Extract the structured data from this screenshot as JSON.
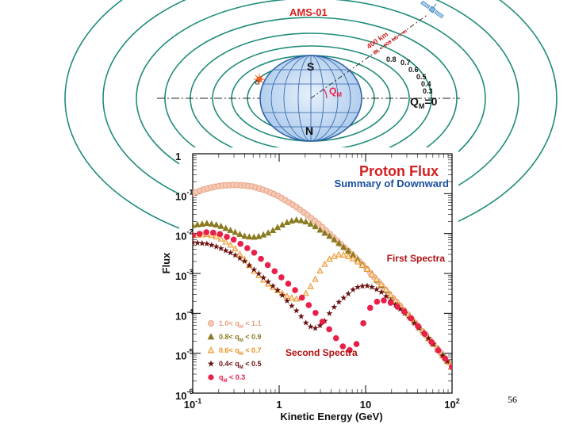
{
  "diagram": {
    "title": "AMS-01",
    "pole_s": "S",
    "pole_n": "N",
    "qm_label": "Q",
    "qm_sub": "M",
    "equator_label": "Q",
    "equator_sub": "M",
    "equator_value": "=0",
    "orbit_label": "400 km",
    "bl_label": "BL = 100 kG × m",
    "contours": [
      "0.8",
      "0.7",
      "0.6",
      "0.5",
      "0.4",
      "0.3"
    ]
  },
  "chart_data": {
    "type": "scatter",
    "title": "Proton Flux",
    "subtitle": "Summary of Downward",
    "xlabel": "Kinetic Energy (GeV)",
    "ylabel": "Flux",
    "xscale": "log",
    "yscale": "log",
    "xlim": [
      0.1,
      100
    ],
    "ylim": [
      1e-06,
      1
    ],
    "x_ticks": [
      {
        "base": "10",
        "exp": "-1",
        "value": 0.1
      },
      {
        "base": "1",
        "exp": "",
        "value": 1
      },
      {
        "base": "10",
        "exp": "",
        "value": 10
      },
      {
        "base": "10",
        "exp": "2",
        "value": 100
      }
    ],
    "y_ticks": [
      {
        "base": "1",
        "exp": "",
        "value": 1
      },
      {
        "base": "10",
        "exp": "-1",
        "value": 0.1
      },
      {
        "base": "10",
        "exp": "-2",
        "value": 0.01
      },
      {
        "base": "10",
        "exp": "-3",
        "value": 0.001
      },
      {
        "base": "10",
        "exp": "-4",
        "value": 0.0001
      },
      {
        "base": "10",
        "exp": "-5",
        "value": 1e-05
      },
      {
        "base": "10",
        "exp": "-6",
        "value": 1e-06
      }
    ],
    "annotations": [
      "First Spectra",
      "Second Spectra"
    ],
    "legend_position": "bottom-left",
    "series": [
      {
        "name": "1.0< q_M < 1.1",
        "legend_pre": "1.0< q",
        "legend_sub": "M",
        "legend_post": " < 1.1",
        "color": "#e8a080",
        "marker": "circle-open",
        "x": [
          0.1,
          0.13,
          0.17,
          0.22,
          0.3,
          0.4,
          0.5,
          0.7,
          1,
          1.5,
          2,
          3,
          5,
          7,
          10,
          15,
          20,
          30,
          50,
          70,
          100
        ],
        "y": [
          0.1,
          0.125,
          0.145,
          0.16,
          0.165,
          0.16,
          0.15,
          0.12,
          0.085,
          0.05,
          0.032,
          0.016,
          0.0058,
          0.003,
          0.0014,
          0.00052,
          0.00026,
          0.0001,
          2.8e-05,
          1.2e-05,
          4.5e-06
        ]
      },
      {
        "name": "0.8< q_M < 0.9",
        "legend_pre": "0.8< q",
        "legend_sub": "M",
        "legend_post": " < 0.9",
        "color": "#8a7a20",
        "marker": "triangle",
        "x": [
          0.1,
          0.15,
          0.2,
          0.3,
          0.4,
          0.5,
          0.6,
          0.8,
          1,
          1.3,
          1.6,
          2,
          2.5,
          3,
          4,
          5,
          7,
          10,
          15,
          20,
          30,
          50,
          70,
          100
        ],
        "y": [
          0.016,
          0.018,
          0.016,
          0.011,
          0.0085,
          0.008,
          0.0085,
          0.011,
          0.015,
          0.02,
          0.022,
          0.02,
          0.016,
          0.012,
          0.008,
          0.0055,
          0.003,
          0.0014,
          0.00052,
          0.00026,
          0.0001,
          2.8e-05,
          1.2e-05,
          4.5e-06
        ]
      },
      {
        "name": "0.6< q_M < 0.7",
        "legend_pre": "0.6< q",
        "legend_sub": "M",
        "legend_post": " < 0.7",
        "color": "#e89020",
        "marker": "triangle-open",
        "x": [
          0.1,
          0.15,
          0.2,
          0.3,
          0.4,
          0.5,
          0.7,
          1,
          1.3,
          1.7,
          2,
          2.5,
          3,
          3.5,
          4,
          5,
          6,
          7,
          8,
          10,
          12,
          15,
          20,
          30,
          50,
          100
        ],
        "y": [
          0.009,
          0.0095,
          0.008,
          0.0045,
          0.0022,
          0.0012,
          0.0006,
          0.00035,
          0.00025,
          0.00022,
          0.0003,
          0.0006,
          0.0012,
          0.0019,
          0.0025,
          0.003,
          0.0028,
          0.0024,
          0.002,
          0.0014,
          0.0009,
          0.00055,
          0.00027,
          0.0001,
          2.8e-05,
          4.5e-06
        ]
      },
      {
        "name": "0.4< q_M < 0.5",
        "legend_pre": "0.4< q",
        "legend_sub": "M",
        "legend_post": " < 0.5",
        "color": "#6a1010",
        "marker": "star",
        "x": [
          0.1,
          0.15,
          0.2,
          0.3,
          0.4,
          0.5,
          0.7,
          1,
          1.3,
          1.7,
          2,
          2.5,
          3,
          3.5,
          4,
          5,
          6,
          7,
          8,
          10,
          12,
          15,
          20,
          30,
          50,
          100
        ],
        "y": [
          0.006,
          0.0055,
          0.0045,
          0.003,
          0.002,
          0.0013,
          0.0007,
          0.00035,
          0.00018,
          0.0001,
          6e-05,
          4e-05,
          5e-05,
          7e-05,
          0.00012,
          0.0002,
          0.00028,
          0.00038,
          0.00045,
          0.0005,
          0.00045,
          0.00035,
          0.0002,
          9e-05,
          2.8e-05,
          4.5e-06
        ]
      },
      {
        "name": "q_M < 0.3",
        "legend_pre": "q",
        "legend_sub": "M",
        "legend_post": " < 0.3",
        "color": "#e8204a",
        "marker": "circle",
        "x": [
          0.1,
          0.15,
          0.2,
          0.3,
          0.5,
          0.7,
          1,
          1.5,
          2,
          2.5,
          3,
          4,
          5,
          6,
          7,
          8,
          9,
          10,
          12,
          15,
          18,
          22,
          30,
          50,
          100
        ],
        "y": [
          0.009,
          0.011,
          0.01,
          0.007,
          0.0035,
          0.0018,
          0.0009,
          0.0004,
          0.0002,
          0.00012,
          7e-05,
          3.5e-05,
          1.8e-05,
          1.2e-05,
          1.2e-05,
          1.8e-05,
          4e-05,
          9e-05,
          0.00017,
          0.00022,
          0.0002,
          0.00016,
          0.0001,
          2.8e-05,
          4.5e-06
        ]
      }
    ]
  },
  "footer": {
    "page_number": "56"
  }
}
